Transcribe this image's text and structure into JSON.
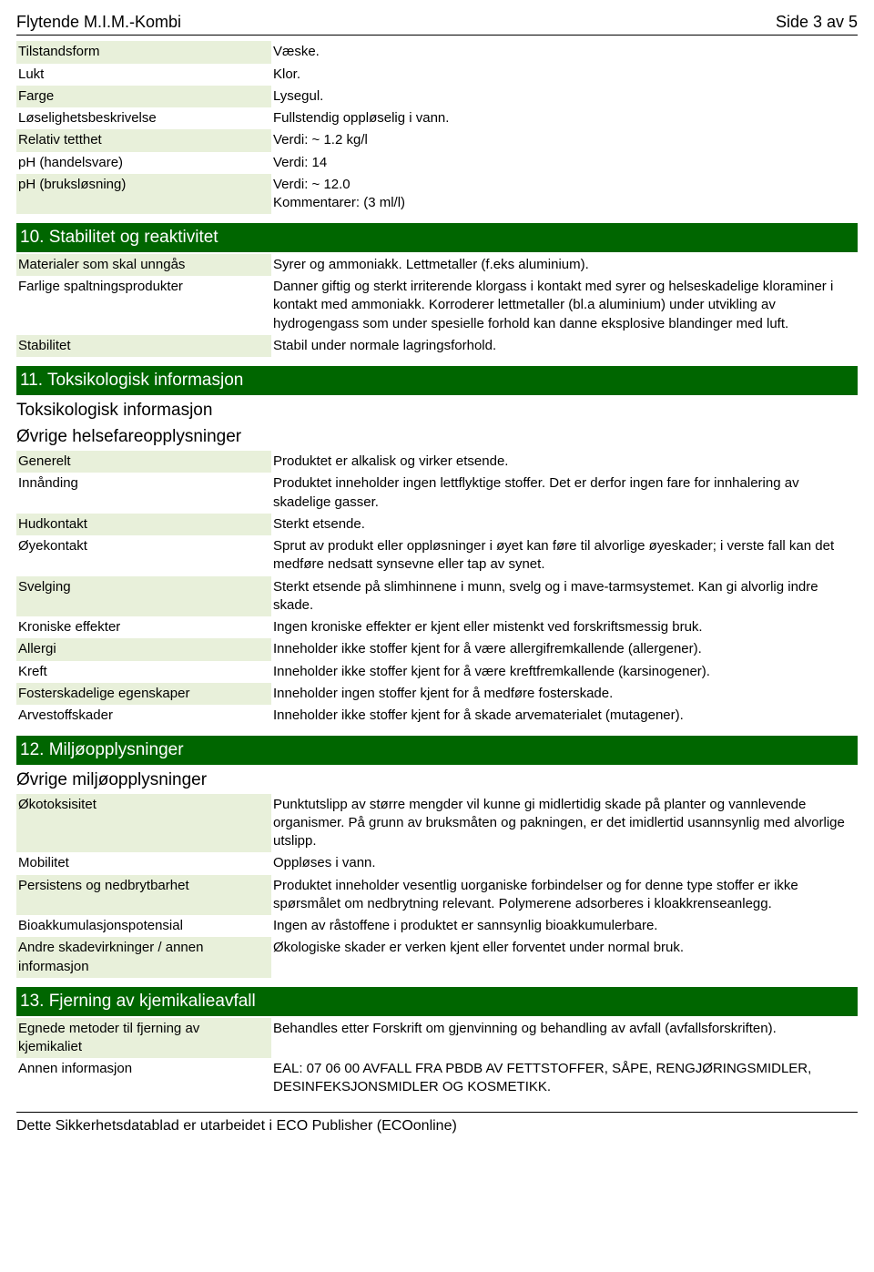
{
  "header": {
    "doc_title": "Flytende M.I.M.-Kombi",
    "page_info": "Side 3 av 5"
  },
  "section9_continued": {
    "rows": [
      {
        "key": "Tilstandsform",
        "val": "Væske."
      },
      {
        "key": "Lukt",
        "val": "Klor."
      },
      {
        "key": "Farge",
        "val": "Lysegul."
      },
      {
        "key": "Løselighetsbeskrivelse",
        "val": "Fullstendig oppløselig i vann."
      },
      {
        "key": "Relativ tetthet",
        "val": "Verdi: ~ 1.2 kg/l"
      },
      {
        "key": "pH (handelsvare)",
        "val": "Verdi: 14"
      },
      {
        "key": "pH (bruksløsning)",
        "val": "Verdi: ~ 12.0\nKommentarer: (3 ml/l)"
      }
    ]
  },
  "section10": {
    "title": "10. Stabilitet og reaktivitet",
    "rows": [
      {
        "key": "Materialer som skal unngås",
        "val": "Syrer og ammoniakk. Lettmetaller (f.eks aluminium)."
      },
      {
        "key": "Farlige spaltningsprodukter",
        "val": "Danner giftig og sterkt irriterende klorgass i kontakt med syrer og helseskadelige kloraminer i kontakt med ammoniakk. Korroderer lettmetaller (bl.a aluminium) under utvikling av hydrogengass som under spesielle forhold kan danne eksplosive blandinger med luft."
      },
      {
        "key": "Stabilitet",
        "val": "Stabil under normale lagringsforhold."
      }
    ]
  },
  "section11": {
    "title": "11. Toksikologisk informasjon",
    "sub1": "Toksikologisk informasjon",
    "sub2": "Øvrige helsefareopplysninger",
    "rows": [
      {
        "key": "Generelt",
        "val": "Produktet er alkalisk og virker etsende."
      },
      {
        "key": "Innånding",
        "val": "Produktet inneholder ingen lettflyktige stoffer. Det er derfor ingen fare for innhalering av skadelige gasser."
      },
      {
        "key": "Hudkontakt",
        "val": "Sterkt etsende."
      },
      {
        "key": "Øyekontakt",
        "val": "Sprut av produkt eller oppløsninger i øyet kan føre til alvorlige øyeskader; i verste fall kan det medføre nedsatt synsevne eller tap av synet."
      },
      {
        "key": "Svelging",
        "val": "Sterkt etsende på slimhinnene i munn, svelg og i mave-tarmsystemet. Kan gi alvorlig indre skade."
      },
      {
        "key": "Kroniske effekter",
        "val": "Ingen kroniske effekter er kjent eller mistenkt ved forskriftsmessig bruk."
      },
      {
        "key": "Allergi",
        "val": "Inneholder ikke stoffer kjent for å være allergifremkallende (allergener)."
      },
      {
        "key": "Kreft",
        "val": "Inneholder ikke stoffer kjent for å være kreftfremkallende (karsinogener)."
      },
      {
        "key": "Fosterskadelige egenskaper",
        "val": "Inneholder ingen stoffer kjent for å medføre fosterskade."
      },
      {
        "key": "Arvestoffskader",
        "val": "Inneholder ikke stoffer kjent for å skade arvematerialet (mutagener)."
      }
    ]
  },
  "section12": {
    "title": "12. Miljøopplysninger",
    "sub1": "Øvrige miljøopplysninger",
    "rows": [
      {
        "key": "Økotoksisitet",
        "val": "Punktutslipp av større mengder vil kunne gi midlertidig skade på planter og vannlevende organismer. På grunn av bruksmåten og pakningen, er det imidlertid usannsynlig med alvorlige utslipp."
      },
      {
        "key": "Mobilitet",
        "val": "Oppløses i vann."
      },
      {
        "key": "Persistens og nedbrytbarhet",
        "val": "Produktet inneholder vesentlig uorganiske forbindelser og for denne type stoffer er ikke spørsmålet om nedbrytning relevant. Polymerene adsorberes i kloakkrenseanlegg."
      },
      {
        "key": "Bioakkumulasjonspotensial",
        "val": "Ingen av råstoffene i produktet er sannsynlig bioakkumulerbare."
      },
      {
        "key": "Andre skadevirkninger / annen informasjon",
        "val": "Økologiske skader er verken kjent eller forventet under normal bruk."
      }
    ]
  },
  "section13": {
    "title": "13. Fjerning av kjemikalieavfall",
    "rows": [
      {
        "key": "Egnede metoder til fjerning av kjemikaliet",
        "val": "Behandles etter Forskrift om gjenvinning og behandling av avfall (avfallsforskriften)."
      },
      {
        "key": "Annen informasjon",
        "val": "EAL: 07 06 00 AVFALL FRA PBDB AV FETTSTOFFER, SÅPE, RENGJØRINGSMIDLER, DESINFEKSJONSMIDLER OG KOSMETIKK."
      }
    ]
  },
  "footer": {
    "text": "Dette Sikkerhetsdatablad er utarbeidet i ECO Publisher (ECOonline)"
  }
}
